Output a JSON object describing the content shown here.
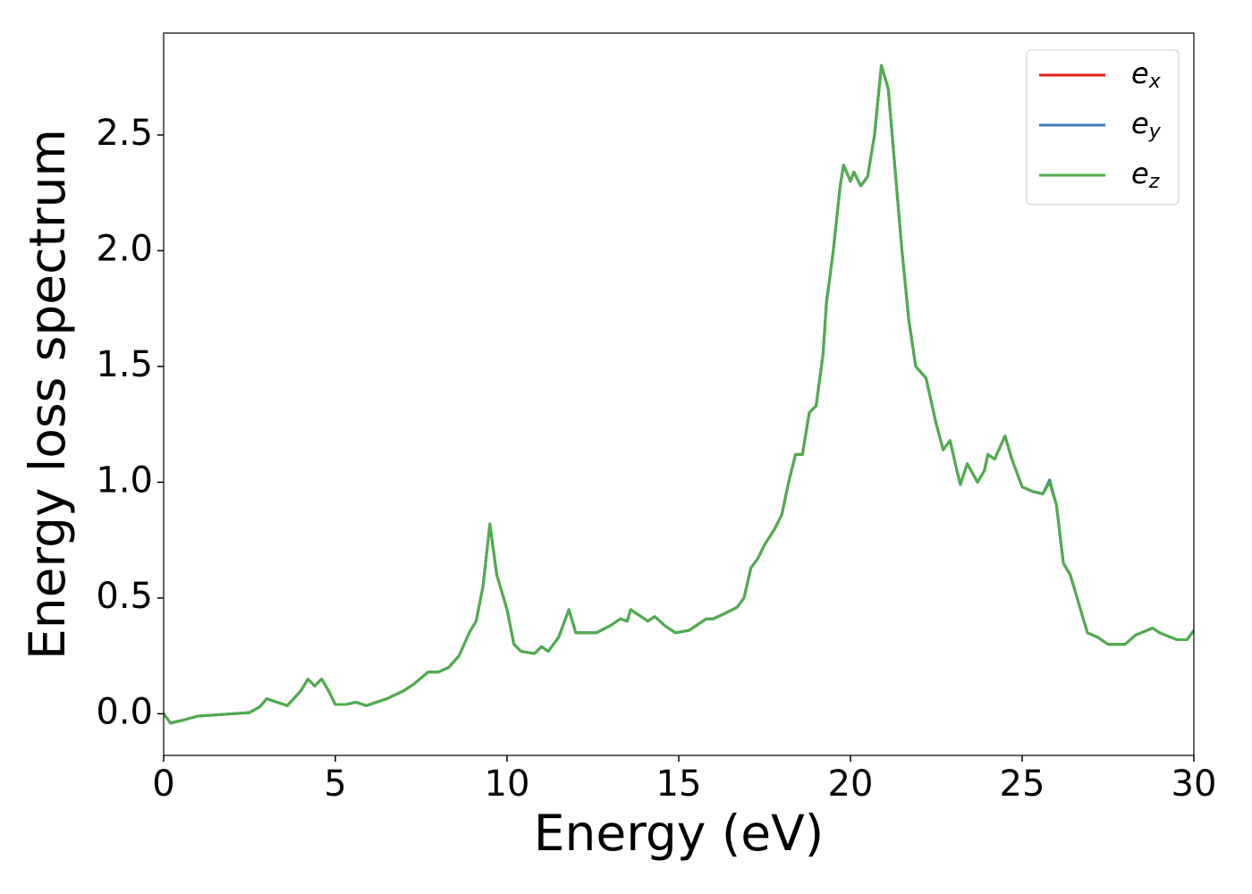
{
  "chart_data": {
    "type": "line",
    "xlabel": "Energy (eV)",
    "ylabel": "Energy loss spectrum",
    "x": [
      0,
      0.2,
      0.5,
      1,
      2,
      2.5,
      2.8,
      3.0,
      3.3,
      3.6,
      4.0,
      4.2,
      4.4,
      4.6,
      4.8,
      5.0,
      5.3,
      5.6,
      5.9,
      6.2,
      6.5,
      7.0,
      7.3,
      7.7,
      8.0,
      8.3,
      8.6,
      8.9,
      9.1,
      9.3,
      9.5,
      9.7,
      10.0,
      10.2,
      10.4,
      10.8,
      11.0,
      11.2,
      11.5,
      11.8,
      12.0,
      12.3,
      12.6,
      13.0,
      13.3,
      13.5,
      13.6,
      13.9,
      14.1,
      14.3,
      14.6,
      14.9,
      15.3,
      15.8,
      16.0,
      16.3,
      16.7,
      16.9,
      17.1,
      17.3,
      17.5,
      17.8,
      18.0,
      18.2,
      18.4,
      18.6,
      18.8,
      19.0,
      19.2,
      19.3,
      19.5,
      19.7,
      19.8,
      20.0,
      20.1,
      20.3,
      20.5,
      20.7,
      20.9,
      21.1,
      21.3,
      21.5,
      21.7,
      21.9,
      22.2,
      22.5,
      22.7,
      22.9,
      23.1,
      23.2,
      23.4,
      23.7,
      23.9,
      24.0,
      24.2,
      24.5,
      24.7,
      25.0,
      25.3,
      25.6,
      25.8,
      26.0,
      26.2,
      26.4,
      26.7,
      26.9,
      27.2,
      27.5,
      28.0,
      28.3,
      28.8,
      29.0,
      29.5,
      29.8,
      30
    ],
    "series": [
      {
        "name": "ex",
        "color": "#e41a1c",
        "values": [
          0.0,
          -0.04,
          -0.03,
          -0.01,
          0.0,
          0.005,
          0.03,
          0.065,
          0.05,
          0.035,
          0.1,
          0.15,
          0.12,
          0.15,
          0.1,
          0.04,
          0.04,
          0.05,
          0.035,
          0.05,
          0.065,
          0.1,
          0.13,
          0.18,
          0.18,
          0.2,
          0.25,
          0.35,
          0.4,
          0.55,
          0.82,
          0.6,
          0.45,
          0.3,
          0.27,
          0.26,
          0.29,
          0.27,
          0.33,
          0.45,
          0.35,
          0.35,
          0.35,
          0.38,
          0.41,
          0.4,
          0.45,
          0.42,
          0.4,
          0.42,
          0.38,
          0.35,
          0.36,
          0.41,
          0.41,
          0.43,
          0.46,
          0.5,
          0.63,
          0.67,
          0.73,
          0.8,
          0.86,
          1.0,
          1.12,
          1.12,
          1.3,
          1.33,
          1.55,
          1.77,
          2.0,
          2.28,
          2.37,
          2.3,
          2.34,
          2.28,
          2.32,
          2.5,
          2.8,
          2.7,
          2.35,
          2.0,
          1.7,
          1.5,
          1.45,
          1.25,
          1.14,
          1.18,
          1.05,
          0.99,
          1.08,
          1.0,
          1.05,
          1.12,
          1.1,
          1.2,
          1.1,
          0.98,
          0.96,
          0.95,
          1.0,
          0.9,
          0.65,
          0.6,
          0.45,
          0.35,
          0.33,
          0.3,
          0.3,
          0.34,
          0.37,
          0.35,
          0.32,
          0.32,
          0.36
        ]
      },
      {
        "name": "ey",
        "color": "#377eb8",
        "values": [
          0.0,
          -0.04,
          -0.03,
          -0.01,
          0.0,
          0.005,
          0.03,
          0.065,
          0.05,
          0.035,
          0.1,
          0.15,
          0.12,
          0.15,
          0.1,
          0.04,
          0.04,
          0.05,
          0.035,
          0.05,
          0.065,
          0.1,
          0.13,
          0.18,
          0.18,
          0.2,
          0.25,
          0.35,
          0.4,
          0.55,
          0.82,
          0.6,
          0.45,
          0.3,
          0.27,
          0.26,
          0.29,
          0.27,
          0.33,
          0.45,
          0.35,
          0.35,
          0.35,
          0.38,
          0.41,
          0.4,
          0.45,
          0.42,
          0.4,
          0.42,
          0.38,
          0.35,
          0.36,
          0.41,
          0.41,
          0.43,
          0.46,
          0.5,
          0.63,
          0.67,
          0.73,
          0.8,
          0.86,
          1.0,
          1.12,
          1.12,
          1.3,
          1.33,
          1.55,
          1.78,
          2.0,
          2.28,
          2.37,
          2.3,
          2.34,
          2.28,
          2.32,
          2.5,
          2.8,
          2.7,
          2.35,
          2.0,
          1.7,
          1.5,
          1.45,
          1.25,
          1.14,
          1.18,
          1.05,
          0.99,
          1.08,
          1.0,
          1.05,
          1.12,
          1.1,
          1.2,
          1.1,
          0.98,
          0.96,
          0.95,
          1.01,
          0.9,
          0.65,
          0.6,
          0.45,
          0.35,
          0.33,
          0.3,
          0.3,
          0.34,
          0.37,
          0.35,
          0.32,
          0.32,
          0.36
        ]
      },
      {
        "name": "ez",
        "color": "#4daf4a",
        "values": [
          0.0,
          -0.04,
          -0.03,
          -0.01,
          0.0,
          0.005,
          0.03,
          0.065,
          0.05,
          0.035,
          0.1,
          0.15,
          0.12,
          0.15,
          0.1,
          0.04,
          0.04,
          0.05,
          0.035,
          0.05,
          0.065,
          0.1,
          0.13,
          0.18,
          0.18,
          0.2,
          0.25,
          0.35,
          0.4,
          0.55,
          0.82,
          0.6,
          0.45,
          0.3,
          0.27,
          0.26,
          0.29,
          0.27,
          0.33,
          0.45,
          0.35,
          0.35,
          0.35,
          0.38,
          0.41,
          0.4,
          0.45,
          0.42,
          0.4,
          0.42,
          0.38,
          0.35,
          0.36,
          0.41,
          0.41,
          0.43,
          0.46,
          0.5,
          0.63,
          0.67,
          0.73,
          0.8,
          0.86,
          1.0,
          1.12,
          1.12,
          1.3,
          1.33,
          1.55,
          1.77,
          2.0,
          2.28,
          2.37,
          2.3,
          2.34,
          2.28,
          2.32,
          2.5,
          2.8,
          2.7,
          2.35,
          2.0,
          1.7,
          1.5,
          1.45,
          1.25,
          1.14,
          1.18,
          1.05,
          0.99,
          1.08,
          1.0,
          1.05,
          1.12,
          1.1,
          1.2,
          1.1,
          0.98,
          0.96,
          0.95,
          1.0,
          0.9,
          0.65,
          0.6,
          0.45,
          0.35,
          0.33,
          0.3,
          0.3,
          0.34,
          0.37,
          0.35,
          0.32,
          0.32,
          0.36
        ]
      }
    ],
    "xlim": [
      0,
      30
    ],
    "xticks": [
      0,
      5,
      10,
      15,
      20,
      25,
      30
    ],
    "ylim": [
      -0.18,
      2.94
    ],
    "yticks": [
      {
        "value": 0,
        "label": "0.0"
      },
      0.5,
      {
        "value": 1,
        "label": "1.0"
      },
      1.5,
      {
        "value": 2,
        "label": "2.0"
      },
      2.5
    ],
    "grid": false,
    "legend": "upper right"
  }
}
